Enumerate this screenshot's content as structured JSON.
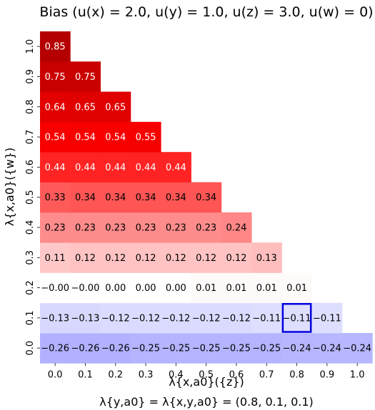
{
  "chart_data": {
    "type": "heatmap",
    "title": "Bias (u(x) = 2.0, u(y) = 1.0, u(z) = 3.0, u(w) = 0)",
    "xlabel": "λ{x,a0}({z})",
    "ylabel": "λ{x,a0}({w})",
    "note": "λ{y,a0} = λ{x,y,a0} = (0.8, 0.1, 0.1)",
    "x_ticks": [
      "0.0",
      "0.1",
      "0.2",
      "0.3",
      "0.4",
      "0.5",
      "0.6",
      "0.7",
      "0.8",
      "0.9",
      "1.0"
    ],
    "y_ticks": [
      "0.0",
      "0.1",
      "0.2",
      "0.3",
      "0.4",
      "0.5",
      "0.6",
      "0.7",
      "0.8",
      "0.9",
      "1.0"
    ],
    "values": [
      [
        -0.26,
        -0.26,
        -0.26,
        -0.25,
        -0.25,
        -0.25,
        -0.25,
        -0.25,
        -0.24,
        -0.24,
        -0.24
      ],
      [
        -0.13,
        -0.13,
        -0.12,
        -0.12,
        -0.12,
        -0.12,
        -0.12,
        -0.11,
        -0.11,
        -0.11
      ],
      [
        -0.0,
        -0.0,
        0.0,
        0.0,
        0.0,
        0.01,
        0.01,
        0.01,
        0.01
      ],
      [
        0.11,
        0.12,
        0.12,
        0.12,
        0.12,
        0.12,
        0.12,
        0.13
      ],
      [
        0.23,
        0.23,
        0.23,
        0.23,
        0.23,
        0.23,
        0.24
      ],
      [
        0.33,
        0.34,
        0.34,
        0.34,
        0.34,
        0.34
      ],
      [
        0.44,
        0.44,
        0.44,
        0.44,
        0.44
      ],
      [
        0.54,
        0.54,
        0.54,
        0.55
      ],
      [
        0.64,
        0.65,
        0.65
      ],
      [
        0.75,
        0.75
      ],
      [
        0.85
      ]
    ],
    "color_range": [
      -0.85,
      0.85
    ],
    "colors": {
      "negative": "#0000ff",
      "neutral": "#ffffff",
      "positive": "#ff0000",
      "dark": "#b40000",
      "highlight": "#0000dd"
    },
    "highlight_cell": {
      "x": "0.8",
      "y": "0.1"
    }
  }
}
